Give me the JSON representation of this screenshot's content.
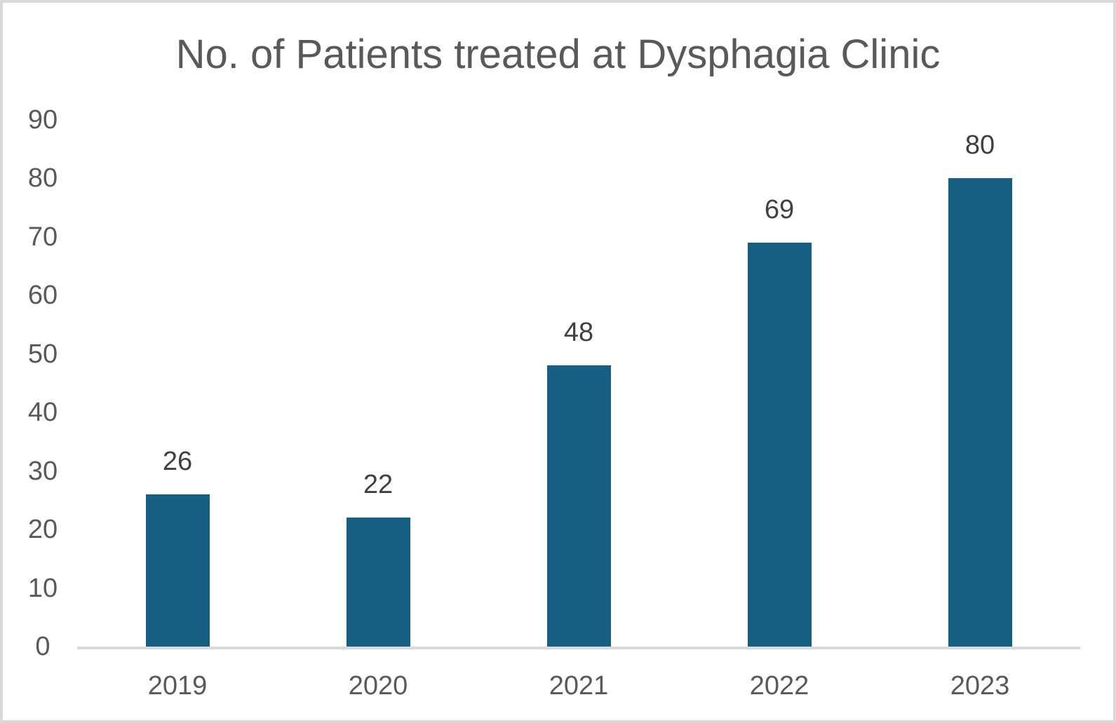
{
  "chart_data": {
    "type": "bar",
    "title": "No. of Patients treated at Dysphagia Clinic",
    "categories": [
      "2019",
      "2020",
      "2021",
      "2022",
      "2023"
    ],
    "values": [
      26,
      22,
      48,
      69,
      80
    ],
    "xlabel": "",
    "ylabel": "",
    "ylim": [
      0,
      90
    ],
    "yticks": [
      0,
      10,
      20,
      30,
      40,
      50,
      60,
      70,
      80,
      90
    ],
    "grid": false,
    "legend": "none",
    "data_labels_shown": true,
    "colors": {
      "bar_fill": "#156082",
      "axis_line": "#d9d9d9",
      "axis_text": "#595959",
      "data_label_text": "#404040",
      "title_text": "#595959",
      "border": "#d9d9d9",
      "background": "#ffffff"
    }
  }
}
